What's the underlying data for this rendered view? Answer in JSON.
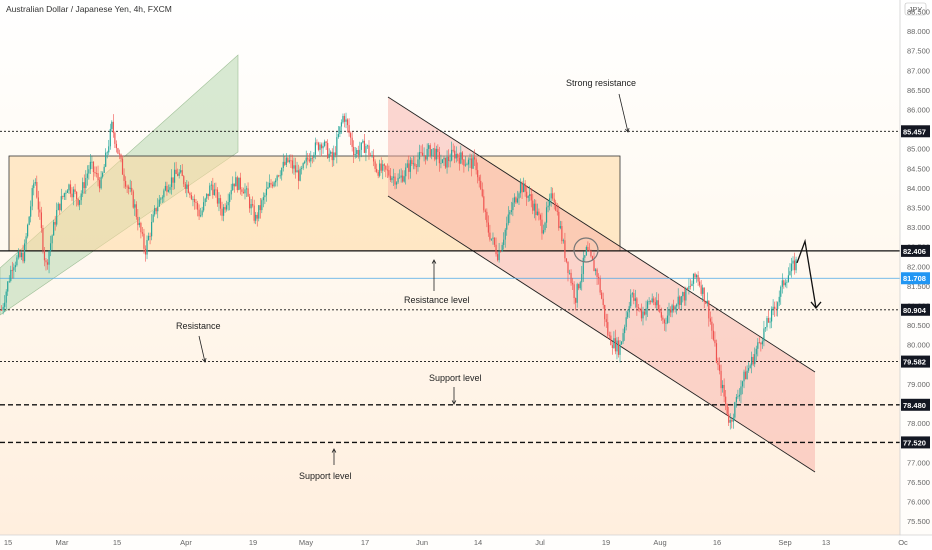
{
  "title": "Australian Dollar / Japanese Yen, 4h, FXCM",
  "currency_badge": "JPY",
  "colors": {
    "up": "#26a69a",
    "down": "#ef5350",
    "level_label_bg": "#131722",
    "current_price_bg": "#2196f3",
    "rising_channel": "#c8e0c0",
    "range_box": "#ffd9a0",
    "falling_channel": "#f7a8a0"
  },
  "chart_data": {
    "type": "candlestick",
    "title": "Australian Dollar / Japanese Yen, 4h, FXCM",
    "ylim": [
      75.3,
      88.75
    ],
    "y_ticks": [
      "88.500",
      "88.000",
      "87.500",
      "87.000",
      "86.500",
      "86.000",
      "85.500",
      "85.000",
      "84.500",
      "84.000",
      "83.500",
      "83.000",
      "82.500",
      "82.000",
      "81.500",
      "81.000",
      "80.500",
      "80.000",
      "79.500",
      "79.000",
      "78.500",
      "78.000",
      "77.500",
      "77.000",
      "76.500",
      "76.000",
      "75.500"
    ],
    "x_ticks": [
      "15",
      "Mar",
      "15",
      "Apr",
      "19",
      "May",
      "17",
      "Jun",
      "14",
      "Jul",
      "19",
      "Aug",
      "16",
      "Sep",
      "13",
      "Oc"
    ],
    "price_levels": [
      {
        "label": "85.457",
        "value": 85.457,
        "style": "dotted"
      },
      {
        "label": "82.406",
        "value": 82.406,
        "style": "solid"
      },
      {
        "label": "80.904",
        "value": 80.904,
        "style": "dotted"
      },
      {
        "label": "79.582",
        "value": 79.582,
        "style": "dotted"
      },
      {
        "label": "78.480",
        "value": 78.48,
        "style": "dashed"
      },
      {
        "label": "77.520",
        "value": 77.52,
        "style": "dashed"
      }
    ],
    "current_price": {
      "label": "81.708",
      "value": 81.708
    },
    "annotations": [
      "Strong resistance",
      "Resistance level",
      "Resistance",
      "Support level",
      "Support level"
    ],
    "price_path": [
      [
        "15",
        80.9
      ],
      [
        "",
        82.1
      ],
      [
        "",
        82.3
      ],
      [
        "",
        84.3
      ],
      [
        "Mar",
        82.0
      ],
      [
        "",
        83.4
      ],
      [
        "",
        84.1
      ],
      [
        "",
        83.7
      ],
      [
        "",
        84.6
      ],
      [
        "",
        84.1
      ],
      [
        "15",
        85.6
      ],
      [
        "",
        84.4
      ],
      [
        "",
        83.6
      ],
      [
        "",
        82.4
      ],
      [
        "",
        83.5
      ],
      [
        "",
        84.1
      ],
      [
        "",
        84.4
      ],
      [
        "Apr",
        84.0
      ],
      [
        "",
        83.3
      ],
      [
        "",
        84.1
      ],
      [
        "",
        83.4
      ],
      [
        "",
        84.2
      ],
      [
        "",
        84.0
      ],
      [
        "",
        83.2
      ],
      [
        "19",
        83.9
      ],
      [
        "",
        84.4
      ],
      [
        "",
        84.7
      ],
      [
        "",
        84.3
      ],
      [
        "",
        84.9
      ],
      [
        "May",
        85.2
      ],
      [
        "",
        84.7
      ],
      [
        "",
        85.9
      ],
      [
        "",
        84.9
      ],
      [
        "",
        85.1
      ],
      [
        "17",
        84.5
      ],
      [
        "",
        84.4
      ],
      [
        "",
        84.2
      ],
      [
        "",
        84.6
      ],
      [
        "",
        84.8
      ],
      [
        "Jun",
        85.0
      ],
      [
        "",
        84.6
      ],
      [
        "",
        84.9
      ],
      [
        "",
        84.7
      ],
      [
        "14",
        84.6
      ],
      [
        "",
        83.0
      ],
      [
        "",
        82.3
      ],
      [
        "",
        83.3
      ],
      [
        "",
        84.1
      ],
      [
        "",
        83.7
      ],
      [
        "Jul",
        83.0
      ],
      [
        "",
        83.9
      ],
      [
        "",
        82.4
      ],
      [
        "",
        81.2
      ],
      [
        "19",
        82.4
      ],
      [
        "",
        81.8
      ],
      [
        "",
        80.2
      ],
      [
        "",
        79.9
      ],
      [
        "",
        81.3
      ],
      [
        "",
        80.8
      ],
      [
        "Aug",
        81.2
      ],
      [
        "",
        80.6
      ],
      [
        "",
        81.1
      ],
      [
        "",
        81.3
      ],
      [
        "",
        81.8
      ],
      [
        "",
        81.0
      ],
      [
        "16",
        79.3
      ],
      [
        "",
        78.0
      ],
      [
        "",
        79.0
      ],
      [
        "",
        79.6
      ],
      [
        "",
        80.3
      ],
      [
        "",
        80.9
      ],
      [
        "Sep",
        81.7
      ],
      [
        "",
        82.1
      ]
    ],
    "projection": [
      82.1,
      82.65,
      80.95
    ]
  }
}
